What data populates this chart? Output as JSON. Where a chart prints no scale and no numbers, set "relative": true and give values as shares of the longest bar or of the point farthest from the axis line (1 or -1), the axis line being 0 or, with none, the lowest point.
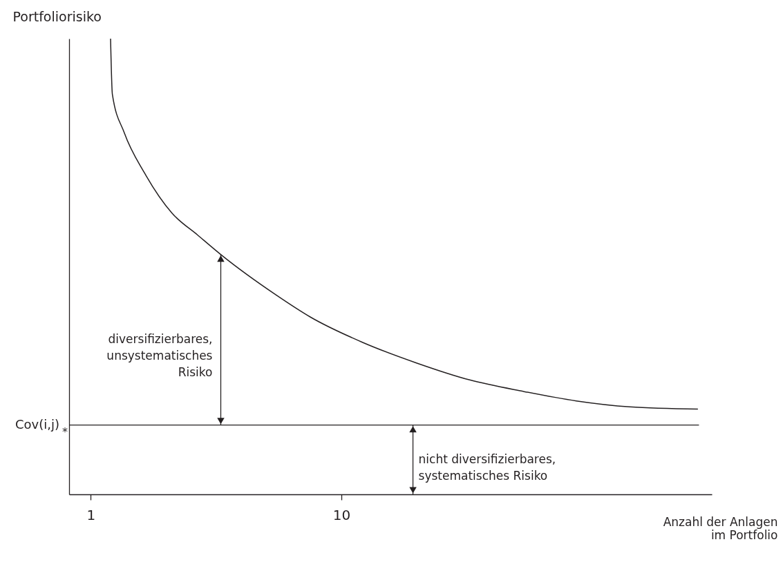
{
  "chart_data": {
    "type": "line",
    "relative": true,
    "log": "x",
    "xlabel": "Anzahl der Anlagen\nim Portfolio",
    "ylabel": "Portfoliorisiko",
    "xlim": [
      0.82,
      300
    ],
    "xticks": [
      1,
      10
    ],
    "marker": "none",
    "line_style": "solid",
    "series": [
      {
        "color": "#231f20",
        "x": [
          1.2,
          1.22,
          1.36,
          1.64,
          2.11,
          2.67,
          3.34,
          5.47,
          7.52,
          12.2,
          20.0,
          32.5,
          53.0,
          86.4,
          141,
          264
        ],
        "values": [
          1.0,
          0.878,
          0.794,
          0.705,
          0.617,
          0.569,
          0.524,
          0.438,
          0.389,
          0.333,
          0.288,
          0.251,
          0.226,
          0.205,
          0.192,
          0.187
        ]
      }
    ],
    "ref_lines": [
      {
        "axis": "y",
        "value": 0.152,
        "label": "Cov(i,j)$_{*}$",
        "color": "#231f20",
        "line_style": "solid"
      }
    ],
    "annotations": [
      "diversifizierbares,\nunsystematisches\nRisiko",
      "nicht diversifizierbares,\nsystematisches Risiko"
    ]
  }
}
